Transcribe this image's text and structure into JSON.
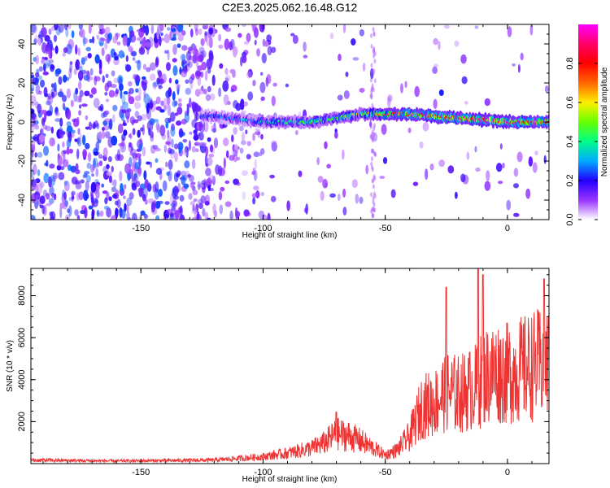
{
  "title": "C2E3.2025.062.16.48.G12",
  "chart_data": [
    {
      "type": "heatmap",
      "xlabel": "Height of straight line (km)",
      "ylabel": "Frequency (Hz)",
      "xlim": [
        -195,
        17
      ],
      "ylim": [
        -50,
        50
      ],
      "xticks": [
        -150,
        -100,
        -50,
        0
      ],
      "yticks": [
        -40,
        -20,
        0,
        20,
        40
      ],
      "colorbar": {
        "label": "Normalized spectral amplitude",
        "range": [
          0,
          1
        ],
        "ticks": [
          "0.0",
          "0.2",
          "0.4",
          "0.6",
          "0.8"
        ],
        "colors": [
          "#ffffff",
          "#9933ff",
          "#2200ff",
          "#00aaff",
          "#00ff88",
          "#66ff00",
          "#ffee00",
          "#ff6600",
          "#ff0000",
          "#ff0066",
          "#ff00ff"
        ]
      },
      "ridge": {
        "x": [
          -120,
          -100,
          -90,
          -80,
          -70,
          -60,
          -50,
          -40,
          -30,
          -20,
          -10,
          0,
          17
        ],
        "freq": [
          3,
          0,
          0,
          0,
          2,
          4,
          4,
          4,
          3,
          2,
          1,
          0,
          0
        ],
        "amplitude": [
          0.25,
          0.35,
          0.4,
          0.45,
          0.5,
          0.55,
          0.7,
          0.85,
          0.85,
          0.85,
          0.9,
          0.9,
          0.8
        ]
      }
    },
    {
      "type": "line",
      "xlabel": "Height of straight line (km)",
      "ylabel": "SNR (10 * v/v)",
      "xlim": [
        -195,
        17
      ],
      "ylim": [
        0,
        9300
      ],
      "xticks": [
        -150,
        -100,
        -50,
        0
      ],
      "yticks": [
        2000,
        4000,
        6000,
        8000
      ],
      "color": "#ee3333",
      "envelope": {
        "x": [
          -195,
          -160,
          -120,
          -100,
          -90,
          -80,
          -75,
          -70,
          -65,
          -60,
          -55,
          -50,
          -45,
          -40,
          -35,
          -30,
          -25,
          -20,
          -15,
          -12,
          -10,
          -5,
          0,
          5,
          10,
          15,
          17
        ],
        "y": [
          200,
          150,
          200,
          400,
          600,
          900,
          1200,
          1700,
          1600,
          1300,
          900,
          500,
          800,
          1600,
          3300,
          3500,
          4200,
          4000,
          4300,
          4500,
          5000,
          5300,
          5200,
          5400,
          5600,
          5800,
          5900
        ]
      },
      "spikes": [
        {
          "x": -70,
          "y": 2450
        },
        {
          "x": -25,
          "y": 8400
        },
        {
          "x": -12,
          "y": 9300
        },
        {
          "x": -10,
          "y": 9000
        },
        {
          "x": 15,
          "y": 8800
        }
      ]
    }
  ]
}
